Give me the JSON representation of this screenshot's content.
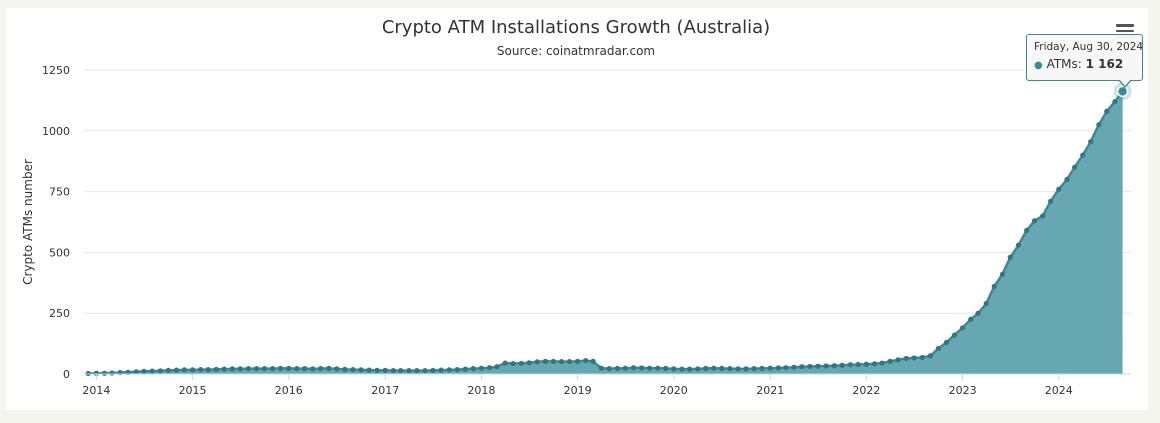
{
  "chart_data": {
    "type": "area",
    "title": "Crypto ATM Installations Growth (Australia)",
    "subtitle": "Source: coinatmradar.com",
    "ylabel": "Crypto ATMs number",
    "xlabel": "",
    "ylim": [
      0,
      1250
    ],
    "yticks": [
      0,
      250,
      500,
      750,
      1000,
      1250
    ],
    "xlim": [
      "2013-11-15",
      "2024-10-01"
    ],
    "xticks": [
      "2014",
      "2015",
      "2016",
      "2017",
      "2018",
      "2019",
      "2020",
      "2021",
      "2022",
      "2023",
      "2024"
    ],
    "grid": true,
    "legend": "none",
    "series": [
      {
        "name": "ATMs",
        "color": "#3a8a9a",
        "fill": "#5a9fab",
        "points": [
          [
            "2013-12-01",
            2
          ],
          [
            "2014-01-01",
            3
          ],
          [
            "2014-02-01",
            3
          ],
          [
            "2014-03-01",
            4
          ],
          [
            "2014-04-01",
            6
          ],
          [
            "2014-05-01",
            7
          ],
          [
            "2014-06-01",
            9
          ],
          [
            "2014-07-01",
            11
          ],
          [
            "2014-08-01",
            12
          ],
          [
            "2014-09-01",
            13
          ],
          [
            "2014-10-01",
            15
          ],
          [
            "2014-11-01",
            16
          ],
          [
            "2014-12-01",
            17
          ],
          [
            "2015-01-01",
            17
          ],
          [
            "2015-02-01",
            18
          ],
          [
            "2015-03-01",
            18
          ],
          [
            "2015-04-01",
            19
          ],
          [
            "2015-05-01",
            20
          ],
          [
            "2015-06-01",
            21
          ],
          [
            "2015-07-01",
            21
          ],
          [
            "2015-08-01",
            22
          ],
          [
            "2015-09-01",
            22
          ],
          [
            "2015-10-01",
            22
          ],
          [
            "2015-11-01",
            22
          ],
          [
            "2015-12-01",
            23
          ],
          [
            "2016-01-01",
            23
          ],
          [
            "2016-02-01",
            22
          ],
          [
            "2016-03-01",
            22
          ],
          [
            "2016-04-01",
            21
          ],
          [
            "2016-05-01",
            22
          ],
          [
            "2016-06-01",
            23
          ],
          [
            "2016-07-01",
            21
          ],
          [
            "2016-08-01",
            19
          ],
          [
            "2016-09-01",
            18
          ],
          [
            "2016-10-01",
            17
          ],
          [
            "2016-11-01",
            16
          ],
          [
            "2016-12-01",
            15
          ],
          [
            "2017-01-01",
            15
          ],
          [
            "2017-02-01",
            14
          ],
          [
            "2017-03-01",
            14
          ],
          [
            "2017-04-01",
            14
          ],
          [
            "2017-05-01",
            14
          ],
          [
            "2017-06-01",
            14
          ],
          [
            "2017-07-01",
            15
          ],
          [
            "2017-08-01",
            16
          ],
          [
            "2017-09-01",
            17
          ],
          [
            "2017-10-01",
            18
          ],
          [
            "2017-11-01",
            20
          ],
          [
            "2017-12-01",
            22
          ],
          [
            "2018-01-01",
            24
          ],
          [
            "2018-02-01",
            26
          ],
          [
            "2018-03-01",
            30
          ],
          [
            "2018-04-01",
            45
          ],
          [
            "2018-05-01",
            43
          ],
          [
            "2018-06-01",
            44
          ],
          [
            "2018-07-01",
            46
          ],
          [
            "2018-08-01",
            50
          ],
          [
            "2018-09-01",
            52
          ],
          [
            "2018-10-01",
            52
          ],
          [
            "2018-11-01",
            51
          ],
          [
            "2018-12-01",
            51
          ],
          [
            "2019-01-01",
            52
          ],
          [
            "2019-02-01",
            55
          ],
          [
            "2019-03-01",
            52
          ],
          [
            "2019-04-01",
            24
          ],
          [
            "2019-05-01",
            22
          ],
          [
            "2019-06-01",
            23
          ],
          [
            "2019-07-01",
            24
          ],
          [
            "2019-08-01",
            26
          ],
          [
            "2019-09-01",
            25
          ],
          [
            "2019-10-01",
            24
          ],
          [
            "2019-11-01",
            24
          ],
          [
            "2019-12-01",
            23
          ],
          [
            "2020-01-01",
            21
          ],
          [
            "2020-02-01",
            20
          ],
          [
            "2020-03-01",
            20
          ],
          [
            "2020-04-01",
            21
          ],
          [
            "2020-05-01",
            23
          ],
          [
            "2020-06-01",
            24
          ],
          [
            "2020-07-01",
            23
          ],
          [
            "2020-08-01",
            22
          ],
          [
            "2020-09-01",
            21
          ],
          [
            "2020-10-01",
            21
          ],
          [
            "2020-11-01",
            22
          ],
          [
            "2020-12-01",
            23
          ],
          [
            "2021-01-01",
            24
          ],
          [
            "2021-02-01",
            25
          ],
          [
            "2021-03-01",
            26
          ],
          [
            "2021-04-01",
            28
          ],
          [
            "2021-05-01",
            30
          ],
          [
            "2021-06-01",
            31
          ],
          [
            "2021-07-01",
            32
          ],
          [
            "2021-08-01",
            33
          ],
          [
            "2021-09-01",
            34
          ],
          [
            "2021-10-01",
            36
          ],
          [
            "2021-11-01",
            38
          ],
          [
            "2021-12-01",
            39
          ],
          [
            "2022-01-01",
            40
          ],
          [
            "2022-02-01",
            42
          ],
          [
            "2022-03-01",
            45
          ],
          [
            "2022-04-01",
            52
          ],
          [
            "2022-05-01",
            58
          ],
          [
            "2022-06-01",
            64
          ],
          [
            "2022-07-01",
            66
          ],
          [
            "2022-08-01",
            68
          ],
          [
            "2022-09-01",
            75
          ],
          [
            "2022-10-01",
            105
          ],
          [
            "2022-11-01",
            130
          ],
          [
            "2022-12-01",
            160
          ],
          [
            "2023-01-01",
            190
          ],
          [
            "2023-02-01",
            225
          ],
          [
            "2023-03-01",
            250
          ],
          [
            "2023-04-01",
            290
          ],
          [
            "2023-05-01",
            360
          ],
          [
            "2023-06-01",
            410
          ],
          [
            "2023-07-01",
            480
          ],
          [
            "2023-08-01",
            530
          ],
          [
            "2023-09-01",
            590
          ],
          [
            "2023-10-01",
            630
          ],
          [
            "2023-11-01",
            650
          ],
          [
            "2023-12-01",
            710
          ],
          [
            "2024-01-01",
            760
          ],
          [
            "2024-02-01",
            800
          ],
          [
            "2024-03-01",
            850
          ],
          [
            "2024-04-01",
            900
          ],
          [
            "2024-05-01",
            955
          ],
          [
            "2024-06-01",
            1025
          ],
          [
            "2024-07-01",
            1080
          ],
          [
            "2024-08-01",
            1120
          ],
          [
            "2024-08-30",
            1162
          ]
        ]
      }
    ]
  },
  "tooltip": {
    "date": "Friday, Aug 30, 2024",
    "series_label": "ATMs: ",
    "value": "1 162",
    "bullet": "●"
  },
  "menu": {
    "icon": "hamburger-menu-icon"
  }
}
